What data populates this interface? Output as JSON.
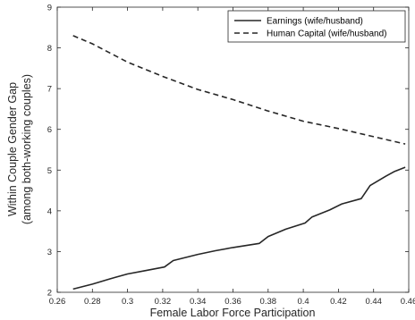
{
  "chart_data": {
    "type": "line",
    "title": "",
    "xlabel": "Female Labor Force Participation",
    "ylabel_line1": "Within Couple Gender Gap",
    "ylabel_line2": "(among both-working couples)",
    "xlim": [
      0.26,
      0.46
    ],
    "ylim": [
      2,
      9
    ],
    "xticks": [
      0.26,
      0.28,
      0.3,
      0.32,
      0.34,
      0.36,
      0.38,
      0.4,
      0.42,
      0.44,
      0.46
    ],
    "xtick_labels": [
      "0.26",
      "0.28",
      "0.3",
      "0.32",
      "0.34",
      "0.36",
      "0.38",
      "0.4",
      "0.42",
      "0.44",
      "0.46"
    ],
    "yticks": [
      2,
      3,
      4,
      5,
      6,
      7,
      8,
      9
    ],
    "ytick_labels": [
      "2",
      "3",
      "4",
      "5",
      "6",
      "7",
      "8",
      "9"
    ],
    "grid": false,
    "legend_position": "top-right",
    "series": [
      {
        "name": "Earnings (wife/husband)",
        "style": "solid",
        "color": "#262626",
        "x": [
          0.269,
          0.28,
          0.29,
          0.3,
          0.31,
          0.321,
          0.326,
          0.34,
          0.35,
          0.36,
          0.375,
          0.38,
          0.39,
          0.401,
          0.405,
          0.415,
          0.422,
          0.433,
          0.438,
          0.447,
          0.452,
          0.458
        ],
        "y": [
          2.08,
          2.2,
          2.33,
          2.45,
          2.53,
          2.62,
          2.78,
          2.93,
          3.02,
          3.1,
          3.2,
          3.37,
          3.55,
          3.7,
          3.85,
          4.02,
          4.17,
          4.3,
          4.62,
          4.85,
          4.97,
          5.07
        ]
      },
      {
        "name": "Human Capital (wife/husband)",
        "style": "dashed",
        "color": "#262626",
        "x": [
          0.269,
          0.28,
          0.3,
          0.32,
          0.34,
          0.36,
          0.38,
          0.4,
          0.42,
          0.44,
          0.458
        ],
        "y": [
          8.3,
          8.1,
          7.65,
          7.3,
          6.98,
          6.73,
          6.45,
          6.2,
          6.02,
          5.82,
          5.64
        ]
      }
    ]
  }
}
